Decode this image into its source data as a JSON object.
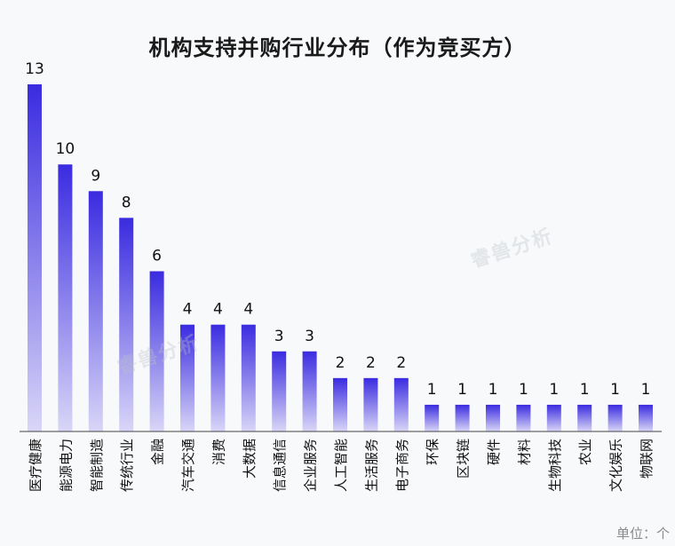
{
  "chart_data": {
    "type": "bar",
    "title": "机构支持并购行业分布（作为竞买方）",
    "categories": [
      "医疗健康",
      "能源电力",
      "智能制造",
      "传统行业",
      "金融",
      "汽车交通",
      "消费",
      "大数据",
      "信息通信",
      "企业服务",
      "人工智能",
      "生活服务",
      "电子商务",
      "环保",
      "区块链",
      "硬件",
      "材料",
      "生物科技",
      "农业",
      "文化娱乐",
      "物联网"
    ],
    "values": [
      13,
      10,
      9,
      8,
      6,
      4,
      4,
      4,
      3,
      3,
      2,
      2,
      2,
      1,
      1,
      1,
      1,
      1,
      1,
      1,
      1
    ],
    "ylim": [
      0,
      13
    ],
    "grid": false,
    "legend": "none",
    "bar_color_top": "#3a2be0",
    "bar_color_bottom": "#d9d6f7",
    "unit_label": "单位：个"
  },
  "watermark": "睿兽分析"
}
